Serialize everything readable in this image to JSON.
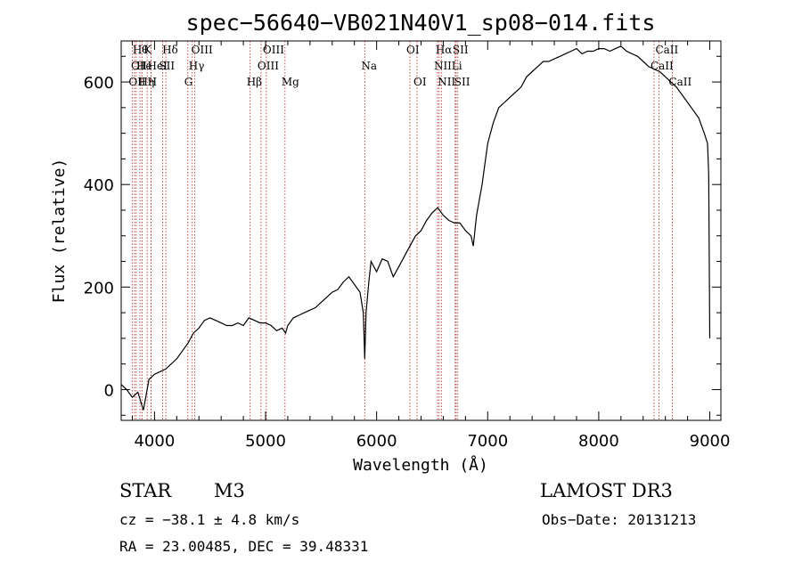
{
  "chart_data": {
    "type": "line",
    "title": "spec−56640−VB021N40V1_sp08−014.fits",
    "xlabel": "Wavelength (Å)",
    "ylabel": "Flux (relative)",
    "xlim": [
      3700,
      9100
    ],
    "ylim": [
      -60,
      680
    ],
    "x_ticks": [
      4000,
      5000,
      6000,
      7000,
      8000,
      9000
    ],
    "y_ticks": [
      0,
      200,
      400,
      600
    ],
    "series": [
      {
        "name": "flux",
        "x": [
          3700,
          3750,
          3800,
          3850,
          3900,
          3950,
          4000,
          4050,
          4100,
          4150,
          4200,
          4250,
          4300,
          4350,
          4400,
          4450,
          4500,
          4550,
          4600,
          4650,
          4700,
          4750,
          4800,
          4850,
          4900,
          4950,
          5000,
          5050,
          5100,
          5150,
          5180,
          5200,
          5250,
          5300,
          5350,
          5400,
          5450,
          5500,
          5550,
          5600,
          5650,
          5700,
          5750,
          5800,
          5850,
          5880,
          5893,
          5905,
          5930,
          5950,
          6000,
          6050,
          6100,
          6150,
          6200,
          6250,
          6300,
          6350,
          6400,
          6450,
          6500,
          6550,
          6600,
          6650,
          6700,
          6750,
          6800,
          6850,
          6870,
          6900,
          6950,
          7000,
          7050,
          7100,
          7150,
          7200,
          7250,
          7300,
          7350,
          7400,
          7450,
          7500,
          7550,
          7600,
          7650,
          7700,
          7750,
          7800,
          7850,
          7900,
          7950,
          8000,
          8050,
          8100,
          8150,
          8200,
          8250,
          8300,
          8350,
          8400,
          8450,
          8500,
          8550,
          8600,
          8650,
          8700,
          8750,
          8800,
          8850,
          8900,
          8950,
          8980,
          8990,
          9000
        ],
        "values": [
          10,
          0,
          -15,
          -5,
          -40,
          20,
          30,
          35,
          40,
          50,
          60,
          75,
          90,
          110,
          120,
          135,
          140,
          135,
          130,
          125,
          125,
          130,
          125,
          140,
          135,
          130,
          130,
          125,
          115,
          120,
          110,
          125,
          140,
          145,
          150,
          155,
          160,
          170,
          180,
          190,
          195,
          210,
          220,
          205,
          190,
          150,
          60,
          150,
          210,
          250,
          230,
          255,
          250,
          220,
          240,
          260,
          280,
          300,
          310,
          330,
          345,
          355,
          340,
          330,
          325,
          325,
          310,
          300,
          280,
          340,
          400,
          480,
          520,
          550,
          560,
          570,
          580,
          590,
          610,
          620,
          630,
          640,
          640,
          645,
          650,
          655,
          660,
          665,
          655,
          660,
          660,
          665,
          665,
          660,
          665,
          670,
          660,
          655,
          650,
          640,
          630,
          625,
          620,
          610,
          600,
          590,
          575,
          560,
          545,
          530,
          500,
          480,
          420,
          100
        ]
      }
    ],
    "lines": [
      {
        "w": 3799,
        "label": "OII",
        "row": 2
      },
      {
        "w": 3820,
        "label": "OⅡ",
        "row": 1
      },
      {
        "w": 3835,
        "label": "Hθ",
        "row": 0
      },
      {
        "w": 3869,
        "label": "He",
        "row": 1
      },
      {
        "w": 3889,
        "label": "Hη",
        "row": 2
      },
      {
        "w": 3934,
        "label": "K",
        "row": 0
      },
      {
        "w": 3969,
        "label": "HeI",
        "row": 1
      },
      {
        "w": 3970,
        "label": "H",
        "row": 2
      },
      {
        "w": 4072,
        "label": "SII",
        "row": 1
      },
      {
        "w": 4102,
        "label": "Hδ",
        "row": 0
      },
      {
        "w": 4300,
        "label": "G",
        "row": 2
      },
      {
        "w": 4340,
        "label": "Hγ",
        "row": 1
      },
      {
        "w": 4363,
        "label": "OIII",
        "row": 0
      },
      {
        "w": 4861,
        "label": "Hβ",
        "row": 2
      },
      {
        "w": 4959,
        "label": "OIII",
        "row": 1
      },
      {
        "w": 5007,
        "label": "OIII",
        "row": 0
      },
      {
        "w": 5175,
        "label": "Mg",
        "row": 2
      },
      {
        "w": 5893,
        "label": "Na",
        "row": 1
      },
      {
        "w": 6300,
        "label": "OI",
        "row": 0
      },
      {
        "w": 6364,
        "label": "OI",
        "row": 2
      },
      {
        "w": 6548,
        "label": "NII",
        "row": 1
      },
      {
        "w": 6563,
        "label": "Hα",
        "row": 0
      },
      {
        "w": 6583,
        "label": "NII",
        "row": 2
      },
      {
        "w": 6707,
        "label": "Li",
        "row": 1
      },
      {
        "w": 6716,
        "label": "SII",
        "row": 0
      },
      {
        "w": 6731,
        "label": "SII",
        "row": 2
      },
      {
        "w": 8498,
        "label": "CaII",
        "row": 1
      },
      {
        "w": 8542,
        "label": "CaII",
        "row": 0
      },
      {
        "w": 8662,
        "label": "CaII",
        "row": 2
      }
    ]
  },
  "info": {
    "class": "STAR",
    "subclass": "M3",
    "survey": "LAMOST DR3",
    "cz": "cz = −38.1 ± 4.8 km/s",
    "obs_date": "Obs−Date: 20131213",
    "coords": "RA =  23.00485, DEC =  39.48331"
  }
}
